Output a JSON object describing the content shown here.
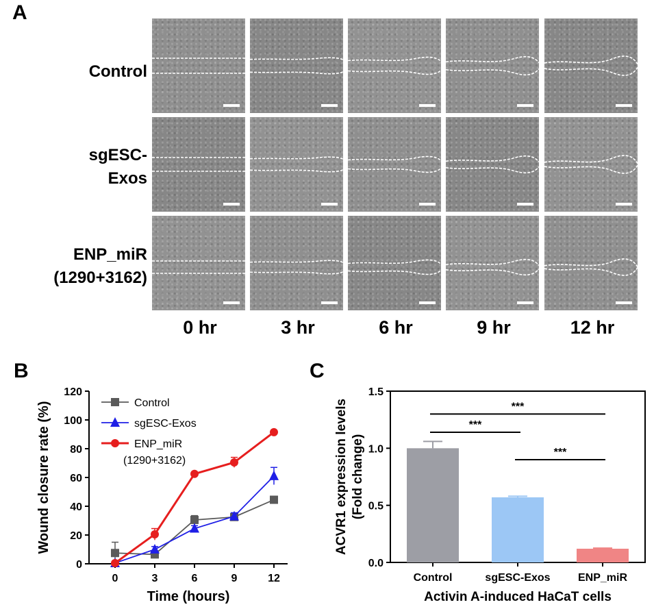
{
  "panel_labels": {
    "a": "A",
    "b": "B",
    "c": "C"
  },
  "panel_a": {
    "rows": [
      {
        "label_lines": [
          "Control"
        ]
      },
      {
        "label_lines": [
          "sgESC-",
          "Exos"
        ]
      },
      {
        "label_lines": [
          "ENP_miR",
          "(1290+3162)"
        ]
      }
    ],
    "columns": [
      "0 hr",
      "3 hr",
      "6 hr",
      "9 hr",
      "12 hr"
    ],
    "scale_bar_color": "#ffffff",
    "wound_edge_color": "#ffffff"
  },
  "chart_data": [
    {
      "type": "line",
      "panel": "B",
      "title": "",
      "xlabel": "Time (hours)",
      "ylabel": "Wound closure rate (%)",
      "x": [
        0,
        3,
        6,
        9,
        12
      ],
      "xticks": [
        "0",
        "3",
        "6",
        "9",
        "12"
      ],
      "ylim": [
        0,
        120
      ],
      "yticks": [
        "0",
        "20",
        "40",
        "60",
        "80",
        "100",
        "120"
      ],
      "legend_position": "top-left",
      "series": [
        {
          "name": "Control",
          "marker": "square",
          "color": "#5a5a5a",
          "values": [
            7.5,
            6.5,
            30.5,
            32.5,
            44.5
          ],
          "errors": [
            7.5,
            1.5,
            3.0,
            2.0,
            2.5
          ]
        },
        {
          "name": "sgESC-Exos",
          "marker": "triangle",
          "color": "#1f1fe6",
          "values": [
            0.5,
            10.0,
            24.5,
            33.0,
            61.0
          ],
          "errors": [
            0.5,
            2.0,
            2.0,
            2.5,
            6.0
          ]
        },
        {
          "name": "ENP_miR",
          "name_line2": "(1290+3162)",
          "marker": "circle",
          "color": "#e61e1e",
          "values": [
            0.5,
            20.5,
            62.5,
            70.5,
            91.5
          ],
          "errors": [
            0.5,
            4.0,
            1.0,
            3.5,
            1.0
          ]
        }
      ]
    },
    {
      "type": "bar",
      "panel": "C",
      "title": "",
      "xlabel": "Activin A-induced HaCaT cells",
      "ylabel": "ACVR1 expression levels",
      "ylabel_line2": "(Fold change)",
      "categories": [
        "Control",
        "sgESC-Exos",
        "ENP_miR"
      ],
      "values": [
        1.0,
        0.57,
        0.12
      ],
      "errors": [
        0.06,
        0.01,
        0.005
      ],
      "colors": [
        "#9d9ea5",
        "#9cc7f5",
        "#f08585"
      ],
      "ylim": [
        0,
        1.5
      ],
      "yticks": [
        "0.0",
        "0.5",
        "1.0",
        "1.5"
      ],
      "significance": [
        {
          "from": 0,
          "to": 2,
          "label": "***",
          "y": 1.3
        },
        {
          "from": 0,
          "to": 1,
          "label": "***",
          "y": 1.14
        },
        {
          "from": 1,
          "to": 2,
          "label": "***",
          "y": 0.9
        }
      ]
    }
  ]
}
